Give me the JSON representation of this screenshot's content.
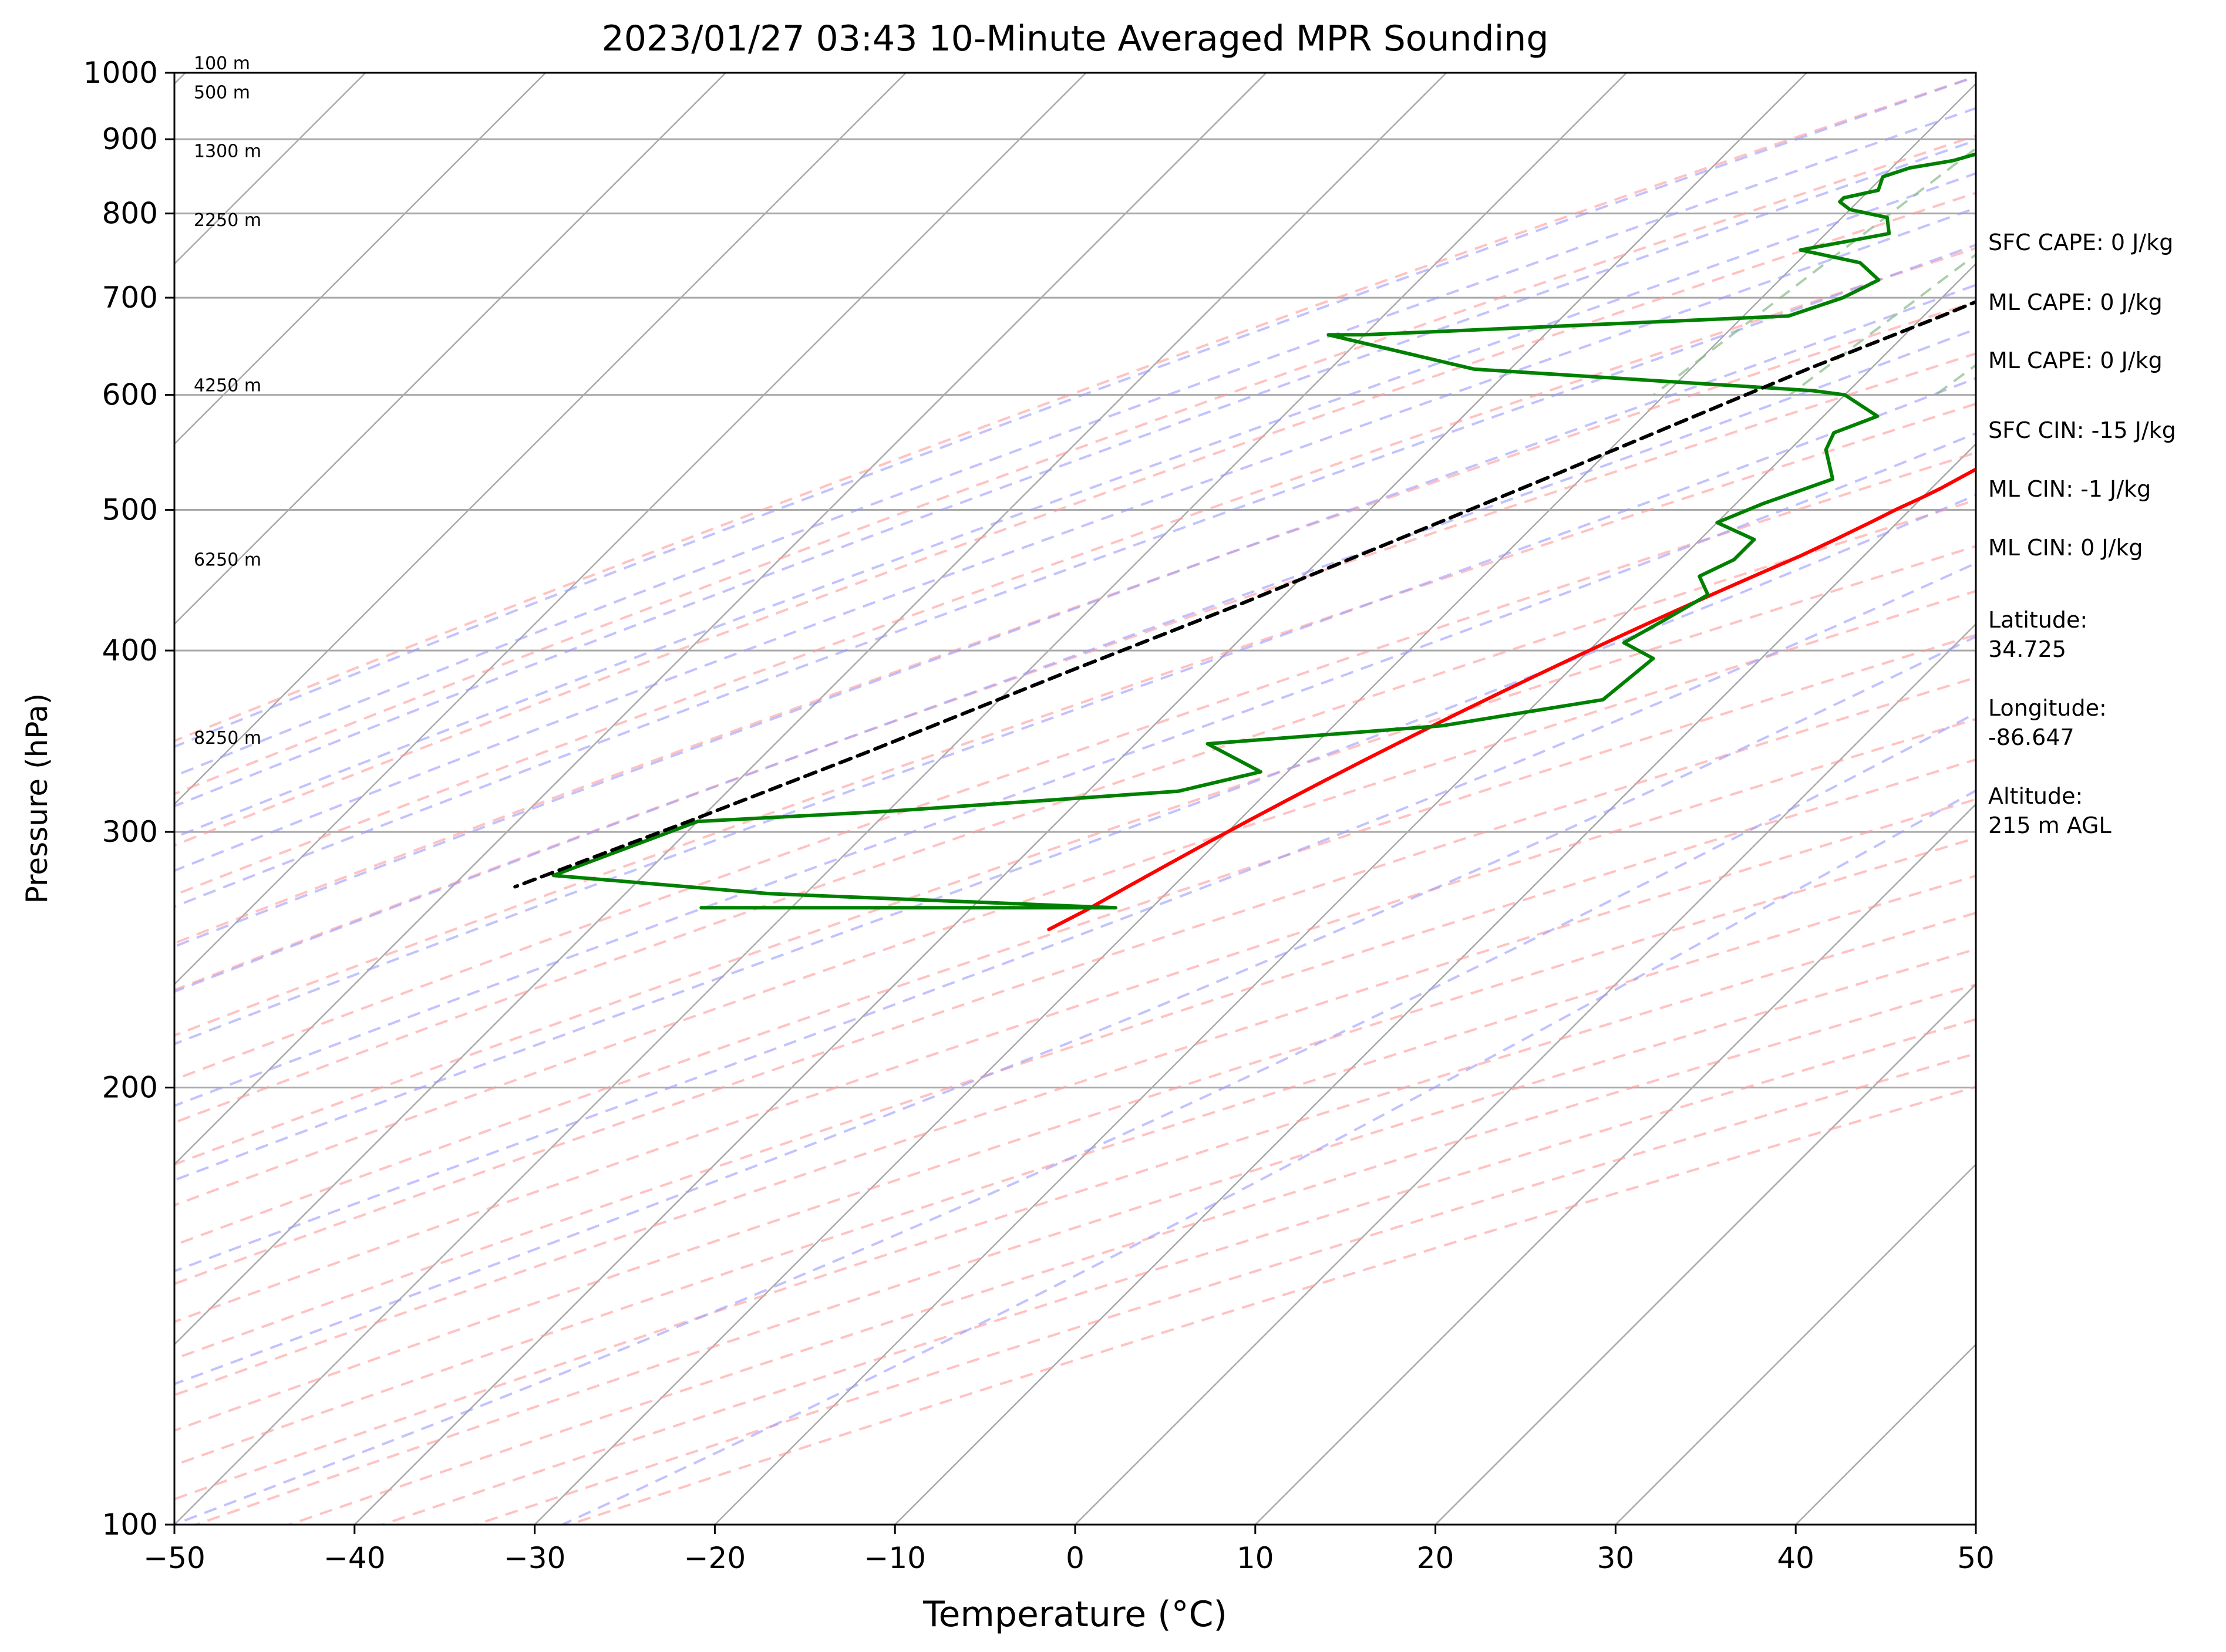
{
  "chart_data": {
    "type": "line",
    "title": "2023/01/27 03:43 10-Minute Averaged MPR Sounding",
    "xlabel": "Temperature (°C)",
    "ylabel": "Pressure (hPa)",
    "xlim": [
      -50,
      50
    ],
    "ylim": [
      1000,
      100
    ],
    "y_scale": "log",
    "skew": "skew-T log-P",
    "x_ticks": [
      -50,
      -40,
      -30,
      -20,
      -10,
      0,
      10,
      20,
      30,
      40,
      50
    ],
    "x_tick_labels": [
      "−50",
      "−40",
      "−30",
      "−20",
      "−10",
      "0",
      "10",
      "20",
      "30",
      "40",
      "50"
    ],
    "y_ticks": [
      1000,
      900,
      800,
      700,
      600,
      500,
      400,
      300,
      200,
      100
    ],
    "y_tick_labels": [
      "1000",
      "900",
      "800",
      "700",
      "600",
      "500",
      "400",
      "300",
      "200",
      "100"
    ],
    "grid": "horizontal at y ticks",
    "series": [
      {
        "role": "temperature",
        "color": "#ff0000",
        "points": [
          [
            1.8,
            1000
          ],
          [
            1.8,
            990
          ],
          [
            1.2,
            970
          ],
          [
            -1.0,
            945
          ],
          [
            -3.0,
            925
          ],
          [
            -3.6,
            900
          ],
          [
            -3.8,
            880
          ],
          [
            -3.8,
            850
          ],
          [
            -3.2,
            840
          ],
          [
            -3.2,
            820
          ],
          [
            -2.8,
            800
          ],
          [
            -2.8,
            780
          ],
          [
            -2.6,
            760
          ],
          [
            -2.8,
            740
          ],
          [
            -2.8,
            710
          ],
          [
            -2.8,
            690
          ],
          [
            -3.5,
            660
          ],
          [
            -4.5,
            630
          ],
          [
            -5.5,
            610
          ],
          [
            -6.2,
            590
          ],
          [
            -6.8,
            570
          ],
          [
            -7.5,
            555
          ],
          [
            -8.5,
            535
          ],
          [
            -9.5,
            517
          ],
          [
            -10.0,
            510
          ],
          [
            -10.8,
            500
          ],
          [
            -11.5,
            490
          ],
          [
            -12.5,
            477
          ],
          [
            -13.5,
            465
          ],
          [
            -14.5,
            455
          ],
          [
            -15.5,
            445
          ],
          [
            -16.5,
            435
          ],
          [
            -17.5,
            425
          ],
          [
            -18.5,
            415
          ],
          [
            -19.5,
            405
          ],
          [
            -20.5,
            395
          ],
          [
            -21.5,
            385
          ],
          [
            -22.5,
            375
          ],
          [
            -23.5,
            365
          ],
          [
            -24.5,
            355
          ],
          [
            -25.5,
            345
          ],
          [
            -26.5,
            335
          ],
          [
            -27.5,
            325
          ],
          [
            -28.5,
            315
          ],
          [
            -29.5,
            305
          ],
          [
            -30.5,
            295
          ],
          [
            -31.5,
            285
          ],
          [
            -32.5,
            275
          ],
          [
            -33.5,
            265
          ],
          [
            -34.5,
            257
          ]
        ]
      },
      {
        "role": "dewpoint",
        "color": "#008000",
        "points": [
          [
            -3.2,
            1000
          ],
          [
            -6.0,
            993
          ],
          [
            -9.0,
            985
          ],
          [
            -11.0,
            975
          ],
          [
            -13.0,
            960
          ],
          [
            -15.0,
            940
          ],
          [
            -16.0,
            925
          ],
          [
            -20.0,
            910
          ],
          [
            -23.0,
            895
          ],
          [
            -26.0,
            880
          ],
          [
            -27.0,
            870
          ],
          [
            -29.0,
            860
          ],
          [
            -30.0,
            848
          ],
          [
            -29.5,
            830
          ],
          [
            -31.0,
            820
          ],
          [
            -31.0,
            815
          ],
          [
            -30.0,
            805
          ],
          [
            -27.5,
            795
          ],
          [
            -26.5,
            775
          ],
          [
            -30.5,
            755
          ],
          [
            -26.5,
            740
          ],
          [
            -24.5,
            720
          ],
          [
            -25.5,
            700
          ],
          [
            -27.5,
            680
          ],
          [
            -50.0,
            660
          ],
          [
            -52.0,
            660
          ],
          [
            -42.0,
            625
          ],
          [
            -22.0,
            604
          ],
          [
            -20.0,
            600
          ],
          [
            -17.0,
            580
          ],
          [
            -18.5,
            565
          ],
          [
            -18.0,
            550
          ],
          [
            -16.0,
            525
          ],
          [
            -18.5,
            505
          ],
          [
            -20.0,
            490
          ],
          [
            -17.0,
            477
          ],
          [
            -17.0,
            462
          ],
          [
            -18.0,
            450
          ],
          [
            -16.5,
            437
          ],
          [
            -17.5,
            420
          ],
          [
            -18.5,
            405
          ],
          [
            -16.0,
            395
          ],
          [
            -16.5,
            370
          ],
          [
            -24.0,
            355
          ],
          [
            -36.0,
            345
          ],
          [
            -31.5,
            330
          ],
          [
            -35.0,
            320
          ],
          [
            -50.0,
            310
          ],
          [
            -60.0,
            305
          ],
          [
            -65.0,
            280
          ],
          [
            -52.0,
            272
          ],
          [
            -32.0,
            266
          ],
          [
            -55.0,
            266
          ]
        ]
      },
      {
        "role": "parcel",
        "color": "#000000",
        "style": "dashed",
        "points": [
          [
            1.8,
            1000
          ],
          [
            0.2,
            970
          ],
          [
            -1.5,
            940
          ],
          [
            -3.0,
            915
          ],
          [
            -4.2,
            900
          ],
          [
            -6.0,
            870
          ],
          [
            -8.5,
            830
          ],
          [
            -12.0,
            780
          ],
          [
            -15.5,
            730
          ],
          [
            -19.0,
            680
          ],
          [
            -23.5,
            625
          ],
          [
            -28.0,
            570
          ],
          [
            -32.0,
            525
          ],
          [
            -37.0,
            475
          ],
          [
            -42.0,
            430
          ],
          [
            -48.0,
            385
          ],
          [
            -54.5,
            340
          ],
          [
            -60.5,
            305
          ],
          [
            -66.5,
            275
          ]
        ]
      }
    ],
    "height_labels": [
      {
        "pressure": 1000,
        "text": "100 m"
      },
      {
        "pressure": 955,
        "text": "500 m"
      },
      {
        "pressure": 870,
        "text": "1300 m"
      },
      {
        "pressure": 780,
        "text": "2250 m"
      },
      {
        "pressure": 600,
        "text": "4250 m"
      },
      {
        "pressure": 455,
        "text": "6250 m"
      },
      {
        "pressure": 343,
        "text": "8250 m"
      }
    ],
    "side_annotations": [
      [
        "SFC CAPE: 0 J/kg"
      ],
      [
        "ML CAPE: 0 J/kg"
      ],
      [
        "ML CAPE: 0 J/kg"
      ],
      [
        "SFC CIN: -15 J/kg"
      ],
      [
        "ML CIN: -1 J/kg"
      ],
      [
        "ML CIN: 0 J/kg"
      ],
      [
        "Latitude:",
        "34.725"
      ],
      [
        "Longitude:",
        "-86.647"
      ],
      [
        "Altitude:",
        "215 m AGL"
      ]
    ],
    "colors": {
      "dry_adiabat": "#ff9999",
      "moist_adiabat": "#9999ff",
      "mixing_ratio": "#88bb88",
      "isotherm": "#a9a9a9",
      "gridline": "#a9a9a9"
    }
  }
}
